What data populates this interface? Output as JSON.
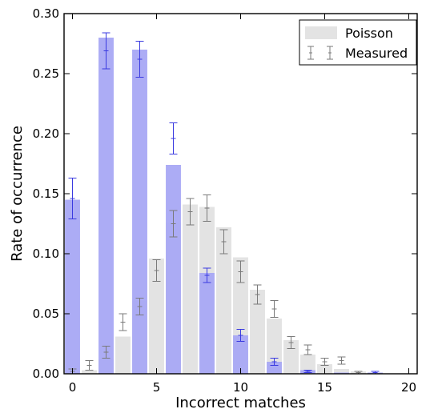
{
  "chart_data": {
    "type": "bar",
    "xlabel": "Incorrect matches",
    "ylabel": "Rate of occurrence",
    "xlim": [
      -0.5,
      20.5
    ],
    "ylim": [
      0,
      0.3
    ],
    "xticks": [
      0,
      5,
      10,
      15,
      20
    ],
    "yticks": [
      0.0,
      0.05,
      0.1,
      0.15,
      0.2,
      0.25,
      0.3
    ],
    "legend_position": "top-right",
    "legend": [
      {
        "label": "Poisson",
        "kind": "bar"
      },
      {
        "label": "Measured",
        "kind": "errorbar"
      }
    ],
    "poisson": {
      "color": "#e3e3e3",
      "x": [
        0,
        1,
        2,
        3,
        4,
        5,
        6,
        7,
        8,
        9,
        10,
        11,
        12,
        13,
        14,
        15,
        16,
        17,
        18
      ],
      "values": [
        0.0,
        0.003,
        0.012,
        0.031,
        0.061,
        0.096,
        0.126,
        0.141,
        0.139,
        0.122,
        0.097,
        0.07,
        0.046,
        0.028,
        0.016,
        0.008,
        0.004,
        0.002,
        0.001
      ]
    },
    "blue_bars": {
      "color": "#a8a8f4",
      "x": [
        0,
        2,
        4,
        6,
        8,
        10,
        12,
        14,
        16,
        18
      ],
      "values": [
        0.145,
        0.28,
        0.27,
        0.174,
        0.084,
        0.032,
        0.01,
        0.003,
        0.001,
        0.001
      ]
    },
    "blue_measured": {
      "color": "#3a3ae0",
      "x": [
        0,
        2,
        4,
        6,
        8,
        10,
        12,
        14,
        18
      ],
      "values": [
        0.146,
        0.269,
        0.262,
        0.196,
        0.082,
        0.032,
        0.01,
        0.002,
        0.001
      ],
      "errors": [
        0.017,
        0.015,
        0.015,
        0.013,
        0.006,
        0.005,
        0.003,
        0.001,
        0.001
      ]
    },
    "gray_measured": {
      "color": "#7a7a7a",
      "x": [
        0,
        1,
        2,
        3,
        4,
        5,
        6,
        7,
        8,
        9,
        10,
        11,
        12,
        13,
        14,
        15,
        16,
        17,
        18
      ],
      "values": [
        0.002,
        0.007,
        0.018,
        0.043,
        0.056,
        0.086,
        0.125,
        0.135,
        0.138,
        0.11,
        0.085,
        0.066,
        0.054,
        0.026,
        0.02,
        0.01,
        0.011,
        0.001,
        0.001
      ],
      "errors": [
        0.002,
        0.004,
        0.005,
        0.007,
        0.007,
        0.009,
        0.011,
        0.011,
        0.011,
        0.01,
        0.009,
        0.008,
        0.007,
        0.005,
        0.004,
        0.003,
        0.003,
        0.001,
        0.001
      ]
    }
  }
}
